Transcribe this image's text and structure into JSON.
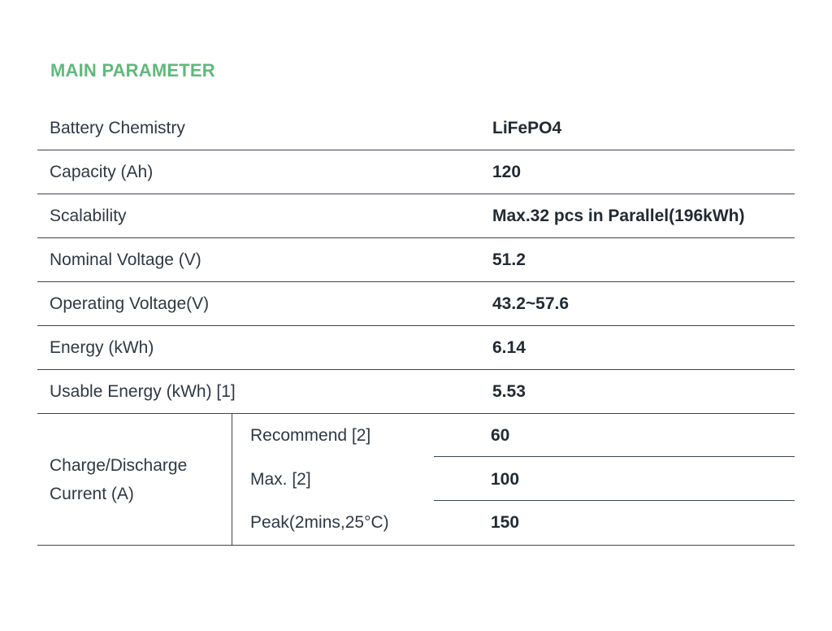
{
  "title": "MAIN PARAMETER",
  "rows": [
    {
      "label": "Battery Chemistry",
      "value": "LiFePO4"
    },
    {
      "label": "Capacity (Ah)",
      "value": "120"
    },
    {
      "label": "Scalability",
      "value": "Max.32 pcs in Parallel(196kWh)"
    },
    {
      "label": "Nominal Voltage (V)",
      "value": "51.2"
    },
    {
      "label": "Operating Voltage(V)",
      "value": "43.2~57.6"
    },
    {
      "label": "Energy (kWh)",
      "value": "6.14"
    },
    {
      "label": "Usable Energy (kWh) [1]",
      "value": "5.53"
    }
  ],
  "current_group": {
    "label_line1": "Charge/Discharge",
    "label_line2": "Current (A)",
    "items": [
      {
        "label": "Recommend [2]",
        "value": "60"
      },
      {
        "label": "Max. [2]",
        "value": "100"
      },
      {
        "label": "Peak(2mins,25°C)",
        "value": "150"
      }
    ]
  },
  "colors": {
    "title": "#5fb97a",
    "rule": "#3b4450",
    "text": "#2f3844"
  }
}
